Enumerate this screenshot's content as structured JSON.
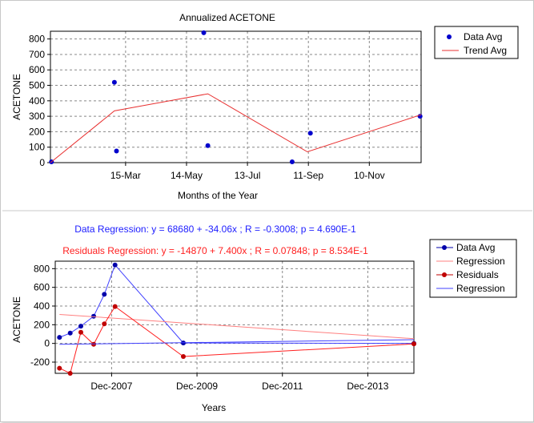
{
  "colors": {
    "data_avg": "#0000cc",
    "trend": "#e83030",
    "regression_red": "#ff8080",
    "residuals": "#c00000",
    "regression_blue": "#4040ff",
    "grid": "#999999",
    "top_text": "#2020ff",
    "bottom_text": "#ff2020"
  },
  "chart_data": [
    {
      "type": "scatter",
      "title": "Annualized ACETONE",
      "xlabel": "Months of the Year",
      "ylabel": "ACETONE",
      "xlim": [
        0,
        365
      ],
      "ylim": [
        0,
        850
      ],
      "xticks": [
        {
          "value": 74,
          "label": "15-Mar"
        },
        {
          "value": 134,
          "label": "14-May"
        },
        {
          "value": 194,
          "label": "13-Jul"
        },
        {
          "value": 254,
          "label": "11-Sep"
        },
        {
          "value": 314,
          "label": "10-Nov"
        }
      ],
      "yticks": [
        0,
        100,
        200,
        300,
        400,
        500,
        600,
        700,
        800
      ],
      "legend": [
        "Data Avg",
        "Trend Avg"
      ],
      "series": [
        {
          "name": "Data Avg",
          "mode": "markers",
          "x": [
            1,
            63,
            65,
            151,
            155,
            238,
            256,
            364
          ],
          "y": [
            5,
            520,
            75,
            840,
            110,
            5,
            190,
            300
          ]
        },
        {
          "name": "Trend Avg",
          "mode": "line",
          "x": [
            0,
            63,
            155,
            253,
            365
          ],
          "y": [
            0,
            335,
            445,
            70,
            310
          ]
        }
      ]
    },
    {
      "type": "line",
      "subtitle_data": "Data Regression: y = 68680 + -34.06x ; R = -0.3008; p = 4.690E-1",
      "subtitle_residuals": "Residuals Regression: y = -14870 + 7.400x ; R = 0.07848; p = 8.534E-1",
      "xlabel": "Years",
      "ylabel": "ACETONE",
      "xlim": [
        2006.6,
        2015.0
      ],
      "ylim": [
        -320,
        880
      ],
      "xticks": [
        {
          "value": 2007.92,
          "label": "Dec-2007"
        },
        {
          "value": 2009.92,
          "label": "Dec-2009"
        },
        {
          "value": 2011.92,
          "label": "Dec-2011"
        },
        {
          "value": 2013.92,
          "label": "Dec-2013"
        }
      ],
      "yticks": [
        -200,
        0,
        200,
        400,
        600,
        800
      ],
      "legend": [
        "Data Avg",
        "Regression",
        "Residuals",
        "Regression"
      ],
      "series": [
        {
          "name": "Data Avg",
          "mode": "lines+markers",
          "x": [
            2006.7,
            2006.95,
            2007.2,
            2007.5,
            2007.75,
            2008.0,
            2009.6,
            2015.0
          ],
          "y": [
            65,
            110,
            185,
            290,
            525,
            840,
            5,
            0
          ]
        },
        {
          "name": "Regression",
          "mode": "line",
          "x": [
            2006.7,
            2015.0
          ],
          "y": [
            310,
            50
          ]
        },
        {
          "name": "Residuals",
          "mode": "lines+markers",
          "x": [
            2006.7,
            2006.95,
            2007.2,
            2007.5,
            2007.75,
            2008.0,
            2009.6,
            2015.0
          ],
          "y": [
            -265,
            -320,
            120,
            -10,
            210,
            395,
            -140,
            -5
          ]
        },
        {
          "name": "Regression",
          "mode": "line",
          "x": [
            2006.7,
            2015.0
          ],
          "y": [
            -10,
            40
          ]
        }
      ]
    }
  ]
}
